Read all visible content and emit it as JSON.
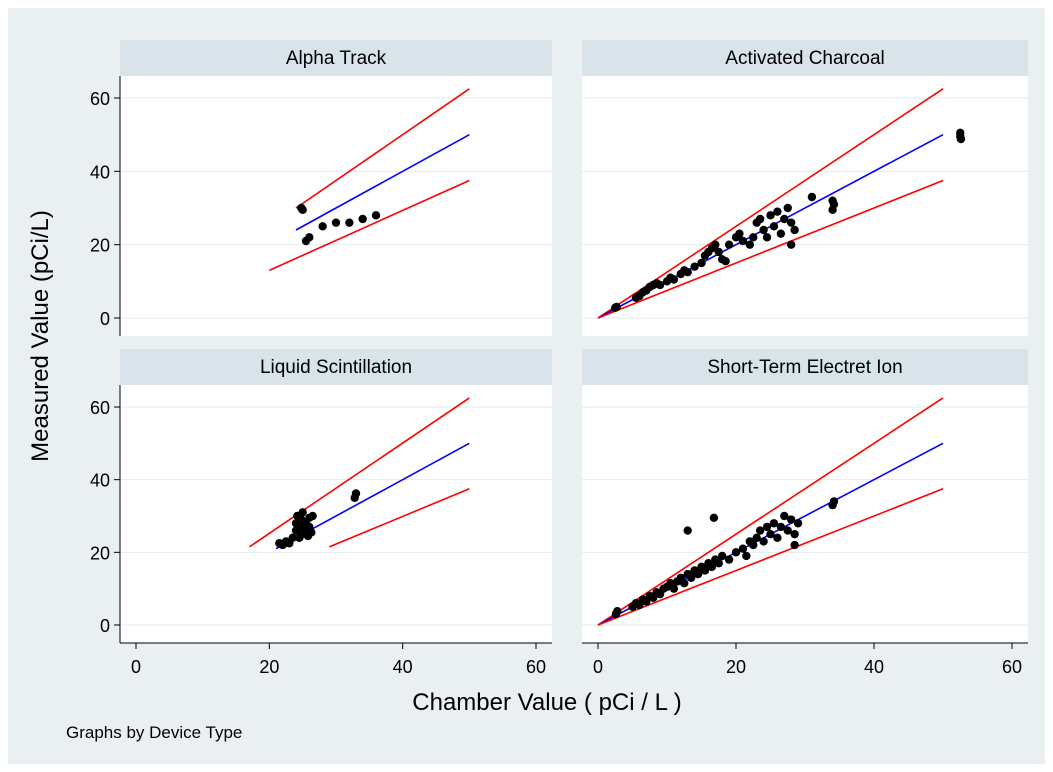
{
  "figure": {
    "xlabel": "Chamber Value ( pCi / L )",
    "ylabel": "Measured Value (pCi/L)",
    "note": "Graphs by Device Type",
    "colors": {
      "outer_bg": "#eaf0f2",
      "panel_bg": "#ffffff",
      "strip_bg": "#d9e4ea",
      "grid": "#e4ebee",
      "upper_bound": "#ff0000",
      "fit": "#0000ff",
      "lower_bound": "#ff0000",
      "points": "#000000"
    }
  },
  "chart_data": [
    {
      "type": "scatter",
      "title": "Alpha Track",
      "xlim": [
        0,
        60
      ],
      "ylim": [
        0,
        60
      ],
      "xticks": [
        0,
        20,
        40,
        60
      ],
      "yticks": [
        0,
        20,
        40,
        60
      ],
      "lines": [
        {
          "role": "upper",
          "x": [
            24,
            50
          ],
          "y": [
            30,
            62.5
          ]
        },
        {
          "role": "fit",
          "x": [
            24,
            50
          ],
          "y": [
            24,
            50
          ]
        },
        {
          "role": "lower",
          "x": [
            20,
            50
          ],
          "y": [
            13,
            37.5
          ]
        }
      ],
      "points": [
        [
          24.8,
          30
        ],
        [
          25,
          29.5
        ],
        [
          26,
          22
        ],
        [
          25.5,
          21
        ],
        [
          28,
          25
        ],
        [
          30,
          26
        ],
        [
          32,
          26
        ],
        [
          34,
          27
        ],
        [
          36,
          28
        ]
      ]
    },
    {
      "type": "scatter",
      "title": "Activated Charcoal",
      "xlim": [
        0,
        60
      ],
      "ylim": [
        0,
        60
      ],
      "xticks": [
        0,
        20,
        40,
        60
      ],
      "yticks": [
        0,
        20,
        40,
        60
      ],
      "lines": [
        {
          "role": "upper",
          "x": [
            0,
            50
          ],
          "y": [
            0,
            62.5
          ]
        },
        {
          "role": "fit",
          "x": [
            0,
            50
          ],
          "y": [
            0,
            50
          ]
        },
        {
          "role": "lower",
          "x": [
            0,
            50
          ],
          "y": [
            0,
            37.5
          ]
        }
      ],
      "points": [
        [
          2.5,
          2.8
        ],
        [
          2.7,
          3
        ],
        [
          5.5,
          5.5
        ],
        [
          6,
          6
        ],
        [
          6.5,
          7
        ],
        [
          7,
          7.5
        ],
        [
          7.5,
          8.5
        ],
        [
          8,
          9
        ],
        [
          8.5,
          9.5
        ],
        [
          9,
          9
        ],
        [
          10,
          10
        ],
        [
          10.5,
          11
        ],
        [
          11,
          10.5
        ],
        [
          12,
          12
        ],
        [
          12.5,
          13
        ],
        [
          13,
          12.5
        ],
        [
          14,
          14
        ],
        [
          15,
          15
        ],
        [
          15.5,
          17
        ],
        [
          16,
          18
        ],
        [
          16.5,
          19
        ],
        [
          17,
          20
        ],
        [
          17.5,
          18
        ],
        [
          18,
          16
        ],
        [
          18.5,
          15.5
        ],
        [
          19,
          20
        ],
        [
          20,
          22
        ],
        [
          20.5,
          23
        ],
        [
          21,
          21
        ],
        [
          22,
          20
        ],
        [
          22.5,
          22
        ],
        [
          23,
          26
        ],
        [
          23.5,
          27
        ],
        [
          24,
          24
        ],
        [
          24.5,
          22
        ],
        [
          25,
          28
        ],
        [
          25.5,
          25
        ],
        [
          26,
          29
        ],
        [
          26.5,
          23
        ],
        [
          27,
          27
        ],
        [
          27.5,
          30
        ],
        [
          28,
          26
        ],
        [
          28,
          20
        ],
        [
          28.5,
          24
        ],
        [
          31,
          33
        ],
        [
          34,
          32
        ],
        [
          34,
          29.5
        ],
        [
          34.2,
          31
        ],
        [
          52.5,
          49.5
        ],
        [
          52.5,
          50.5
        ],
        [
          52.6,
          48.8
        ]
      ]
    },
    {
      "type": "scatter",
      "title": "Liquid Scintillation",
      "xlim": [
        0,
        60
      ],
      "ylim": [
        0,
        60
      ],
      "xticks": [
        0,
        20,
        40,
        60
      ],
      "yticks": [
        0,
        20,
        40,
        60
      ],
      "lines": [
        {
          "role": "upper",
          "x": [
            17,
            50
          ],
          "y": [
            21.5,
            62.5
          ]
        },
        {
          "role": "fit",
          "x": [
            21,
            50
          ],
          "y": [
            21,
            50
          ]
        },
        {
          "role": "lower",
          "x": [
            29,
            50
          ],
          "y": [
            21.5,
            37.5
          ]
        }
      ],
      "points": [
        [
          21.5,
          22.5
        ],
        [
          22,
          22
        ],
        [
          22.5,
          23
        ],
        [
          23,
          22.5
        ],
        [
          23.5,
          24
        ],
        [
          24,
          26
        ],
        [
          24,
          28
        ],
        [
          24.2,
          30
        ],
        [
          24.5,
          24
        ],
        [
          24.5,
          27
        ],
        [
          24.8,
          29
        ],
        [
          25,
          25
        ],
        [
          25,
          31
        ],
        [
          25.3,
          26
        ],
        [
          25.5,
          28
        ],
        [
          25.8,
          24.5
        ],
        [
          26,
          27
        ],
        [
          26,
          29.5
        ],
        [
          26.3,
          25.5
        ],
        [
          26.5,
          30
        ],
        [
          32.8,
          35
        ],
        [
          33,
          36.2
        ]
      ]
    },
    {
      "type": "scatter",
      "title": "Short-Term Electret Ion",
      "xlim": [
        0,
        60
      ],
      "ylim": [
        0,
        60
      ],
      "xticks": [
        0,
        20,
        40,
        60
      ],
      "yticks": [
        0,
        20,
        40,
        60
      ],
      "lines": [
        {
          "role": "upper",
          "x": [
            0,
            50
          ],
          "y": [
            0,
            62.5
          ]
        },
        {
          "role": "fit",
          "x": [
            0,
            50
          ],
          "y": [
            0,
            50
          ]
        },
        {
          "role": "lower",
          "x": [
            0,
            50
          ],
          "y": [
            0,
            37.5
          ]
        }
      ],
      "points": [
        [
          2.6,
          3
        ],
        [
          2.8,
          3.8
        ],
        [
          5,
          5
        ],
        [
          5.5,
          6
        ],
        [
          6,
          5.5
        ],
        [
          6.5,
          7
        ],
        [
          7,
          6.5
        ],
        [
          7.5,
          8
        ],
        [
          8,
          7.5
        ],
        [
          8.5,
          9
        ],
        [
          9,
          8.5
        ],
        [
          9.5,
          10
        ],
        [
          10,
          10.5
        ],
        [
          10.5,
          11.5
        ],
        [
          11,
          10
        ],
        [
          11.5,
          12
        ],
        [
          12,
          13
        ],
        [
          12.5,
          11.5
        ],
        [
          13,
          14
        ],
        [
          13.5,
          13
        ],
        [
          13,
          26
        ],
        [
          14,
          15
        ],
        [
          14.5,
          14
        ],
        [
          15,
          16
        ],
        [
          15.5,
          15
        ],
        [
          16,
          17
        ],
        [
          16.5,
          16
        ],
        [
          16.8,
          29.5
        ],
        [
          17,
          18
        ],
        [
          17.5,
          17
        ],
        [
          18,
          19
        ],
        [
          19,
          18
        ],
        [
          20,
          20
        ],
        [
          21,
          21
        ],
        [
          21.5,
          19
        ],
        [
          22,
          23
        ],
        [
          22.5,
          22
        ],
        [
          23,
          24
        ],
        [
          23.5,
          26
        ],
        [
          24,
          23
        ],
        [
          24.5,
          27
        ],
        [
          25,
          25
        ],
        [
          25.5,
          28
        ],
        [
          26,
          24
        ],
        [
          26.5,
          27
        ],
        [
          27,
          30
        ],
        [
          27.5,
          26
        ],
        [
          28,
          29
        ],
        [
          28.5,
          25
        ],
        [
          28.5,
          22
        ],
        [
          29,
          28
        ],
        [
          34,
          33
        ],
        [
          34.2,
          34
        ]
      ]
    }
  ]
}
